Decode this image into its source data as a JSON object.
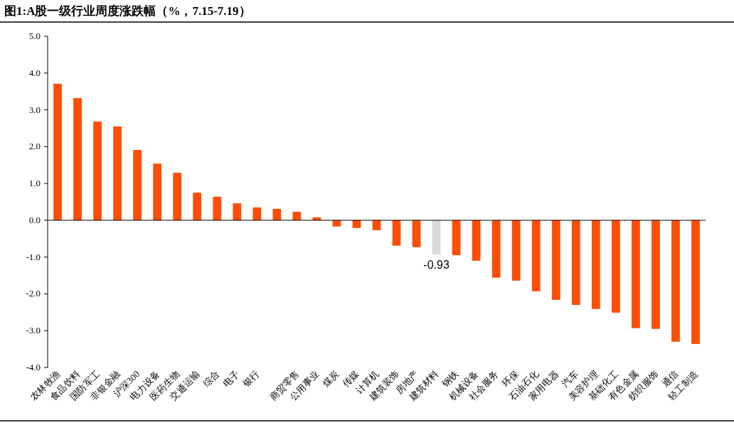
{
  "chart_data": {
    "type": "bar",
    "title": "图1:A股一级行业周度涨跌幅（%，7.15-7.19）",
    "categories": [
      "农林牧渔",
      "食品饮料",
      "国防军工",
      "非银金融",
      "沪深300",
      "电力设备",
      "医药生物",
      "交通运输",
      "综合",
      "电子",
      "银行",
      null,
      "商贸零售",
      "公用事业",
      "煤炭",
      "传媒",
      "计算机",
      "建筑装饰",
      "房地产",
      "建筑材料",
      "钢铁",
      "机械设备",
      "社会服务",
      "环保",
      "石油石化",
      "家用电器",
      "汽车",
      "美容护理",
      "基础化工",
      "有色金属",
      "纺织服饰",
      "通信",
      "轻工制造"
    ],
    "values": [
      3.71,
      3.32,
      2.68,
      2.55,
      1.91,
      1.54,
      1.29,
      0.75,
      0.64,
      0.46,
      0.35,
      0.31,
      0.23,
      0.08,
      -0.17,
      -0.21,
      -0.27,
      -0.69,
      -0.73,
      -0.93,
      -0.95,
      -1.1,
      -1.56,
      -1.64,
      -1.93,
      -2.16,
      -2.3,
      -2.41,
      -2.51,
      -2.93,
      -2.95,
      -3.3,
      -3.36
    ],
    "colors": [
      "#fc4e07",
      "#fc4e07",
      "#fc4e07",
      "#fc4e07",
      "#fc4e07",
      "#fc4e07",
      "#fc4e07",
      "#fc4e07",
      "#fc4e07",
      "#fc4e07",
      "#fc4e07",
      "#fc4e07",
      "#fc4e07",
      "#fc4e07",
      "#fc4e07",
      "#fc4e07",
      "#fc4e07",
      "#fc4e07",
      "#fc4e07",
      "#d9d9d9",
      "#fc4e07",
      "#fc4e07",
      "#fc4e07",
      "#fc4e07",
      "#fc4e07",
      "#fc4e07",
      "#fc4e07",
      "#fc4e07",
      "#fc4e07",
      "#fc4e07",
      "#fc4e07",
      "#fc4e07",
      "#fc4e07"
    ],
    "value_labels": [
      null,
      null,
      null,
      null,
      null,
      null,
      null,
      null,
      null,
      null,
      null,
      null,
      null,
      null,
      null,
      null,
      null,
      null,
      null,
      "-0.93",
      null,
      null,
      null,
      null,
      null,
      null,
      null,
      null,
      null,
      null,
      null,
      null,
      null
    ],
    "ylim": [
      -4,
      5
    ],
    "yticks": [
      {
        "value": -4,
        "label": "-4.0"
      },
      {
        "value": -3,
        "label": "-3.0"
      },
      {
        "value": -2,
        "label": "-2.0"
      },
      {
        "value": -1,
        "label": "-1.0"
      },
      {
        "value": 0,
        "label": "0.0"
      },
      {
        "value": 1,
        "label": "1.0"
      },
      {
        "value": 2,
        "label": "2.0"
      },
      {
        "value": 3,
        "label": "3.0"
      },
      {
        "value": 4,
        "label": "4.0"
      },
      {
        "value": 5,
        "label": "5.0"
      }
    ]
  }
}
